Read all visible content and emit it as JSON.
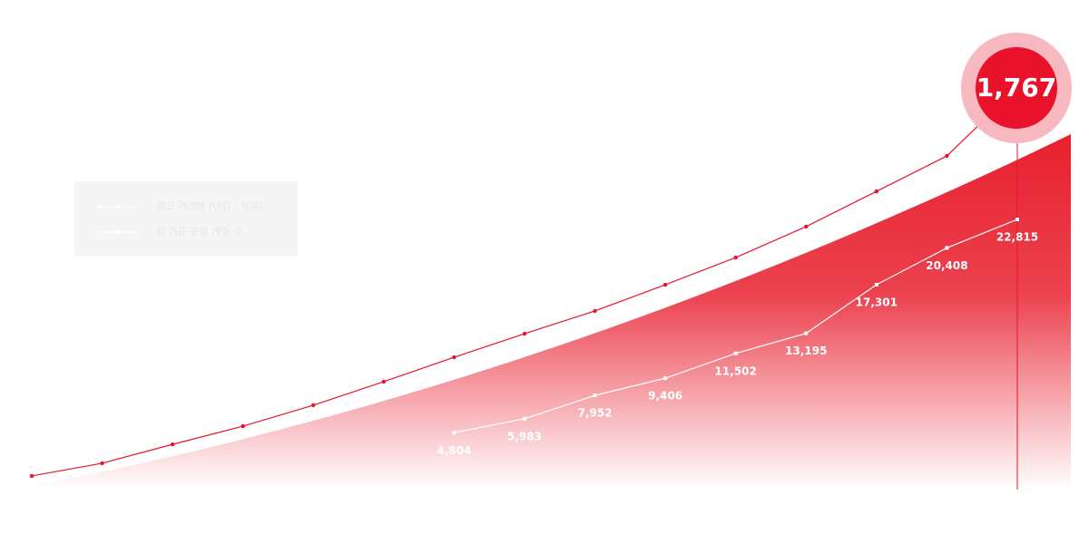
{
  "chart_data": {
    "type": "line",
    "categories": [
      null,
      null,
      null,
      null,
      null,
      null,
      null,
      null,
      null,
      null,
      null,
      null,
      null,
      null,
      null
    ],
    "series": [
      {
        "name": "광고 거래액 (단위 : 억원)",
        "color": "#e8132a",
        "values": [
          60,
          116,
          199,
          279,
          371,
          475,
          582,
          686,
          786,
          901,
          1021,
          1157,
          1312,
          1468,
          1767
        ],
        "value_labels": [
          null,
          null,
          null,
          null,
          null,
          null,
          null,
          null,
          null,
          null,
          null,
          null,
          null,
          null,
          "1,767"
        ]
      },
      {
        "name": "월 기준 운영 계정 수",
        "color": "#ffffff",
        "values": [
          null,
          null,
          null,
          null,
          null,
          null,
          4804,
          5983,
          7952,
          9406,
          11502,
          13195,
          17301,
          20408,
          22815
        ],
        "value_labels": [
          null,
          null,
          null,
          null,
          null,
          null,
          "4,804",
          "5,983",
          "7,952",
          "9,406",
          "11,502",
          "13,195",
          "17,301",
          "20,408",
          "22,815"
        ]
      }
    ]
  }
}
